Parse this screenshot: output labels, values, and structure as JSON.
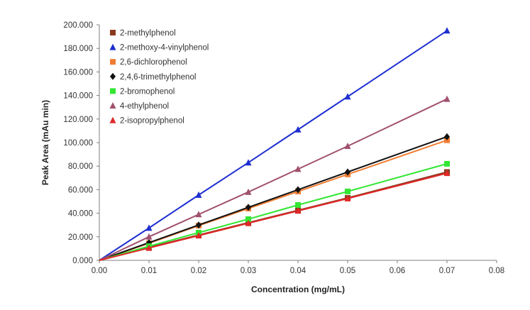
{
  "chart_data": {
    "type": "line",
    "title": "",
    "xlabel": "Concentration (mg/mL)",
    "ylabel": "Peak Area (mAu min)",
    "xlim": [
      0,
      0.08
    ],
    "ylim": [
      0,
      200000
    ],
    "x_ticks": [
      0,
      0.01,
      0.02,
      0.03,
      0.04,
      0.05,
      0.06,
      0.07,
      0.08
    ],
    "x_tick_labels": [
      "0.00",
      "0.01",
      "0.02",
      "0.03",
      "0.04",
      "0.05",
      "0.06",
      "0.07",
      "0.08"
    ],
    "y_ticks": [
      0,
      20000,
      40000,
      60000,
      80000,
      100000,
      120000,
      140000,
      160000,
      180000,
      200000
    ],
    "y_tick_labels": [
      "0.000",
      "20.000",
      "40.000",
      "60.000",
      "80.000",
      "100.000",
      "120.000",
      "140.000",
      "160.000",
      "180.000",
      "200.000"
    ],
    "grid": false,
    "legend_position": "top-left",
    "x": [
      0,
      0.01,
      0.02,
      0.03,
      0.04,
      0.05,
      0.07
    ],
    "series": [
      {
        "name": "2-methylphenol",
        "color": "#8B3A1E",
        "marker": "square",
        "values": [
          0,
          11000,
          21500,
          32000,
          42500,
          53000,
          75000
        ]
      },
      {
        "name": "2-methoxy-4-vinylphenol",
        "color": "#1F2FD0",
        "marker": "triangle",
        "values": [
          0,
          27500,
          55500,
          83000,
          111000,
          139000,
          195000
        ]
      },
      {
        "name": "2,6-dichlorophenol",
        "color": "#F07D32",
        "marker": "square",
        "values": [
          0,
          14500,
          29500,
          44000,
          58500,
          73000,
          102000
        ]
      },
      {
        "name": "2,4,6-trimethylphenol",
        "color": "#111111",
        "marker": "diamond",
        "values": [
          0,
          15000,
          30000,
          45000,
          60000,
          75000,
          105000
        ]
      },
      {
        "name": "2-bromophenol",
        "color": "#33E633",
        "marker": "square",
        "values": [
          0,
          12000,
          23500,
          35000,
          47000,
          58500,
          82000
        ]
      },
      {
        "name": "4-ethylphenol",
        "color": "#A0506E",
        "marker": "triangle",
        "values": [
          0,
          20000,
          39000,
          58000,
          77500,
          97000,
          137000
        ]
      },
      {
        "name": "2-isopropylphenol",
        "color": "#E02828",
        "marker": "triangle",
        "values": [
          0,
          10500,
          21000,
          31500,
          42000,
          52500,
          74000
        ]
      }
    ]
  }
}
